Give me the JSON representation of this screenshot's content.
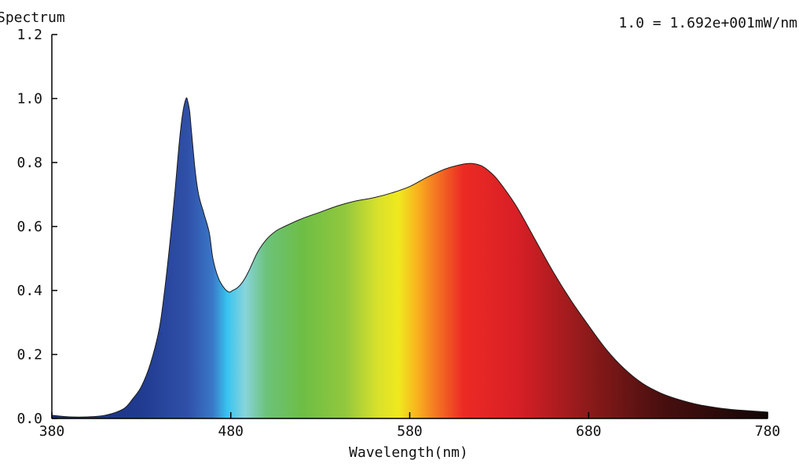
{
  "chart_data": {
    "type": "area",
    "title": "Spectrum",
    "scale_note": "1.0 = 1.692e+001mW/nm",
    "xlabel": "Wavelength(nm)",
    "ylabel": "",
    "xlim": [
      380,
      780
    ],
    "ylim": [
      0,
      1.2
    ],
    "x_ticks": [
      "380",
      "480",
      "580",
      "680",
      "780"
    ],
    "y_ticks": [
      "0.0",
      "0.2",
      "0.4",
      "0.6",
      "0.8",
      "1.0",
      "1.2"
    ],
    "grid": false,
    "fill": "visible-spectrum color gradient",
    "series": [
      {
        "x": [
          380,
          390,
          400,
          410,
          420,
          425,
          430,
          435,
          440,
          443,
          446,
          449,
          451,
          453,
          455,
          456,
          457,
          458,
          460,
          462,
          465,
          468,
          470,
          473,
          476,
          479,
          481,
          484,
          487,
          490,
          495,
          500,
          505,
          510,
          520,
          530,
          540,
          550,
          560,
          570,
          580,
          590,
          600,
          610,
          615,
          620,
          625,
          630,
          640,
          650,
          660,
          670,
          680,
          690,
          700,
          710,
          720,
          730,
          740,
          750,
          760,
          770,
          780
        ],
        "y": [
          0.01,
          0.005,
          0.005,
          0.01,
          0.03,
          0.06,
          0.1,
          0.17,
          0.28,
          0.4,
          0.55,
          0.72,
          0.85,
          0.95,
          1.0,
          0.99,
          0.96,
          0.9,
          0.78,
          0.7,
          0.64,
          0.58,
          0.5,
          0.44,
          0.41,
          0.395,
          0.4,
          0.41,
          0.43,
          0.46,
          0.52,
          0.56,
          0.585,
          0.6,
          0.625,
          0.645,
          0.665,
          0.68,
          0.69,
          0.705,
          0.725,
          0.755,
          0.78,
          0.795,
          0.797,
          0.79,
          0.77,
          0.74,
          0.66,
          0.56,
          0.46,
          0.37,
          0.29,
          0.215,
          0.155,
          0.11,
          0.08,
          0.06,
          0.045,
          0.035,
          0.028,
          0.024,
          0.02
        ]
      }
    ]
  }
}
